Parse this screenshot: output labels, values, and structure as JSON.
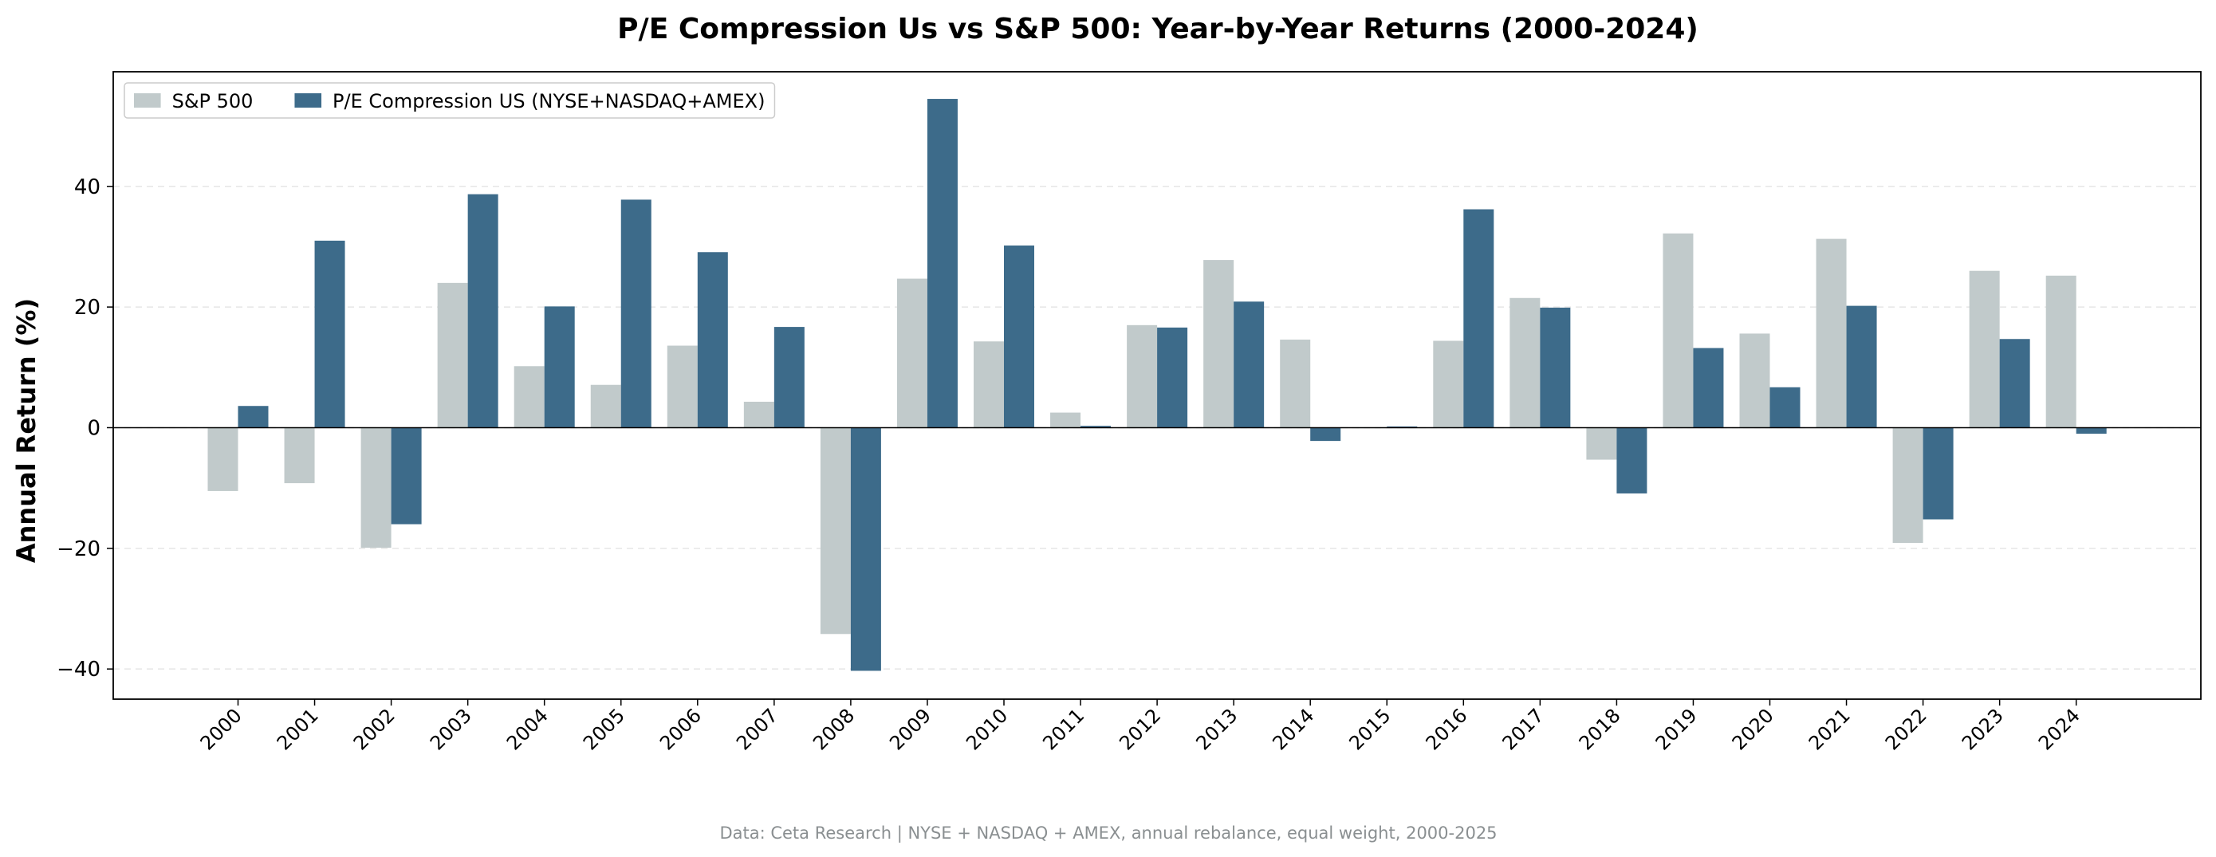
{
  "chart_data": {
    "type": "bar",
    "title": "P/E Compression Us vs S&P 500: Year-by-Year Returns (2000-2024)",
    "xlabel": "",
    "ylabel": "Annual Return (%)",
    "ylim": [
      -45,
      59
    ],
    "yticks": [
      -40,
      -20,
      0,
      20,
      40
    ],
    "ytick_labels": [
      "−40",
      "−20",
      "0",
      "20",
      "40"
    ],
    "grid": "horizontal dashed",
    "legend_position": "top-left",
    "categories": [
      "2000",
      "2001",
      "2002",
      "2003",
      "2004",
      "2005",
      "2006",
      "2007",
      "2008",
      "2009",
      "2010",
      "2011",
      "2012",
      "2013",
      "2014",
      "2015",
      "2016",
      "2017",
      "2018",
      "2019",
      "2020",
      "2021",
      "2022",
      "2023",
      "2024"
    ],
    "series": [
      {
        "name": "S&P 500",
        "color": "#c1cacb",
        "values": [
          -10.5,
          -9.2,
          -19.9,
          24.0,
          10.2,
          7.1,
          13.6,
          4.3,
          -34.2,
          24.7,
          14.3,
          2.5,
          17.0,
          27.8,
          14.6,
          0.0,
          14.4,
          21.5,
          -5.3,
          32.2,
          15.6,
          31.3,
          -19.1,
          26.0,
          25.2
        ]
      },
      {
        "name": "P/E Compression US (NYSE+NASDAQ+AMEX)",
        "color": "#3d6b8a",
        "values": [
          3.6,
          31.0,
          -16.0,
          38.7,
          20.1,
          37.8,
          29.1,
          16.7,
          -40.3,
          54.5,
          30.2,
          0.3,
          16.6,
          20.9,
          -2.2,
          0.2,
          36.2,
          19.9,
          -10.9,
          13.2,
          6.7,
          20.2,
          -15.2,
          14.7,
          -1.0
        ]
      }
    ]
  },
  "footer": "Data: Ceta Research | NYSE + NASDAQ + AMEX, annual rebalance, equal weight, 2000-2025"
}
